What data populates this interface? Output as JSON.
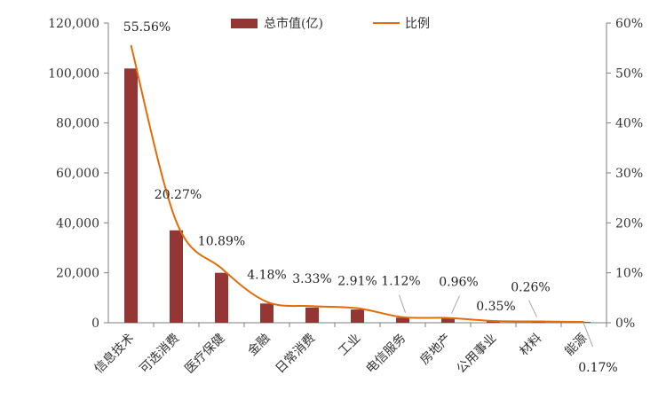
{
  "chart_data": {
    "type": "bar+line",
    "categories": [
      "信息技术",
      "可选消费",
      "医疗保健",
      "金融",
      "日常消费",
      "工业",
      "电信服务",
      "房地产",
      "公用事业",
      "材料",
      "能源"
    ],
    "series": [
      {
        "name": "总市值(亿)",
        "type": "bar",
        "axis": "left",
        "color": "#943634",
        "values": [
          101800,
          37000,
          20000,
          7700,
          6100,
          5300,
          2050,
          1750,
          650,
          480,
          320
        ]
      },
      {
        "name": "比例",
        "type": "line",
        "axis": "right",
        "color": "#E36C09",
        "values": [
          55.56,
          20.27,
          10.89,
          4.18,
          3.33,
          2.91,
          1.12,
          0.96,
          0.35,
          0.26,
          0.17
        ]
      }
    ],
    "data_labels": [
      "55.56%",
      "20.27%",
      "10.89%",
      "4.18%",
      "3.33%",
      "2.91%",
      "1.12%",
      "0.96%",
      "0.35%",
      "0.26%",
      "0.17%"
    ],
    "y_left": {
      "min": 0,
      "max": 120000,
      "step": 20000,
      "tick_labels": [
        "0",
        "20,000",
        "40,000",
        "60,000",
        "80,000",
        "100,000",
        "120,000"
      ]
    },
    "y_right": {
      "min": 0,
      "max": 60,
      "step": 10,
      "tick_labels": [
        "0%",
        "10%",
        "20%",
        "30%",
        "40%",
        "50%",
        "60%"
      ]
    },
    "legend": {
      "position": "top-center",
      "entries": [
        "总市值(亿)",
        "比例"
      ]
    },
    "grid": false
  }
}
